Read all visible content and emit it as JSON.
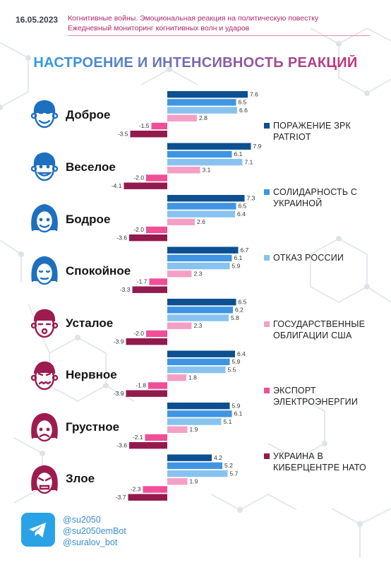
{
  "header": {
    "date": "16.05.2023",
    "line1": "Когнитивные войны. Эмоциональная реакция на политическую повестку",
    "line2": "Ежедневный мониторинг когнитивных волн и ударов"
  },
  "title": "НАСТРОЕНИЕ И ИНТЕНСИВНОСТЬ РЕАКЦИЙ",
  "colors": {
    "s1": "#0d4f91",
    "s2": "#3f95e2",
    "s3": "#88c3f0",
    "s4": "#f4a0c6",
    "s5": "#f04f98",
    "s6": "#931a4d",
    "blue_face": "#1f6fbf",
    "red_face": "#9c1c50"
  },
  "legend": [
    "ПОРАЖЕНИЕ ЗРК PATRIOT",
    "СОЛИДАРНОСТЬ С УКРАИНОЙ",
    "ОТКАЗ РОССИИ",
    "ГОСУДАРСТВЕННЫЕ ОБЛИГАЦИИ США",
    "ЭКСПОРТ ЭЛЕКТРОЭНЕРГИИ",
    "УКРАИНА В КИБЕРЦЕНТРЕ НАТО"
  ],
  "chart_data": {
    "type": "bar",
    "orientation": "horizontal",
    "categories": [
      "Доброе",
      "Веселое",
      "Бодрое",
      "Спокойное",
      "Усталое",
      "Нервное",
      "Грустное",
      "Злое"
    ],
    "series": [
      {
        "name": "ПОРАЖЕНИЕ ЗРК PATRIOT",
        "values": [
          7.6,
          7.9,
          7.3,
          6.7,
          6.5,
          6.4,
          5.9,
          4.2
        ]
      },
      {
        "name": "СОЛИДАРНОСТЬ С УКРАИНОЙ",
        "values": [
          6.5,
          6.1,
          6.5,
          6.1,
          6.2,
          5.9,
          6.1,
          5.2
        ]
      },
      {
        "name": "ОТКАЗ РОССИИ",
        "values": [
          6.6,
          7.1,
          6.4,
          5.9,
          5.8,
          5.5,
          5.1,
          5.7
        ]
      },
      {
        "name": "ГОСУДАРСТВЕННЫЕ ОБЛИГАЦИИ США",
        "values": [
          2.8,
          3.1,
          2.6,
          2.3,
          2.3,
          1.8,
          1.9,
          1.9
        ]
      },
      {
        "name": "ЭКСПОРТ ЭЛЕКТРОЭНЕРГИИ",
        "values": [
          -1.5,
          -2.0,
          -2.0,
          -1.7,
          -2.0,
          -1.8,
          -2.1,
          -2.3
        ]
      },
      {
        "name": "УКРАИНА В КИБЕРЦЕНТРЕ НАТО",
        "values": [
          -3.5,
          -4.1,
          -3.6,
          -3.3,
          -3.9,
          -3.9,
          -3.6,
          -3.7
        ]
      }
    ],
    "value_labels": [
      [
        "7.6",
        "6.5",
        "6.6",
        "2.8",
        "-1.5",
        "-3.5"
      ],
      [
        "7.9",
        "6.1",
        "7.1",
        "3.1",
        "-2.0",
        "-4.1"
      ],
      [
        "7.3",
        "6.5",
        "6.4",
        "2.6",
        "-2.0",
        "-3.6"
      ],
      [
        "6.7",
        "6.1",
        "5.9",
        "2.3",
        "-1.7",
        "-3.3"
      ],
      [
        "6.5",
        "6.2",
        "5.8",
        "2.3",
        "-2.0",
        "-3.9"
      ],
      [
        "6.4",
        "5.9",
        "5.5",
        "1.8",
        "-1.8",
        "-3.9"
      ],
      [
        "5.9",
        "6.1",
        "5.1",
        "1.9",
        "-2.1",
        "-3.6"
      ],
      [
        "4.2",
        "5.2",
        "5.7",
        "1.9",
        "-2.3",
        "-3.7"
      ]
    ],
    "xlim": [
      -4.5,
      8.5
    ],
    "grid": false,
    "legend_position": "right"
  },
  "footer": {
    "handles": [
      "@su2050",
      "@su2050emBot",
      "@suralov_bot"
    ]
  }
}
